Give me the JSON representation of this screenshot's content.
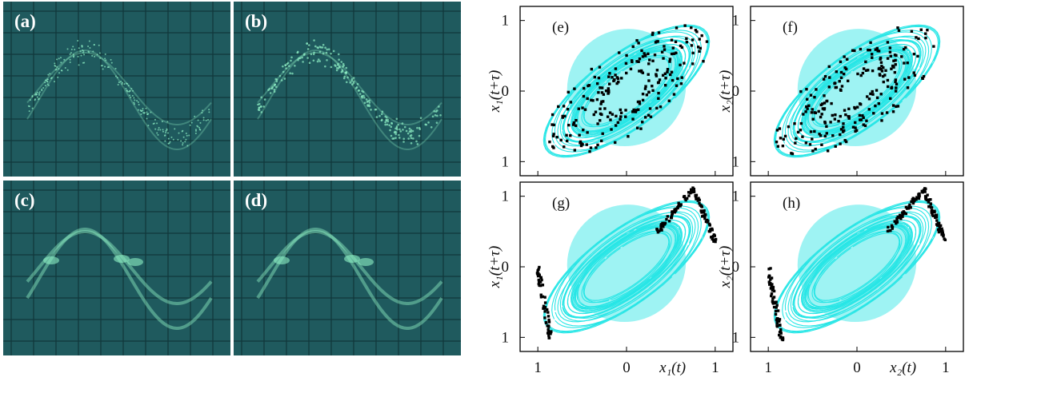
{
  "photos": [
    {
      "label": "(a)",
      "pattern": "smeared"
    },
    {
      "label": "(b)",
      "pattern": "dotted"
    },
    {
      "label": "(c)",
      "pattern": "bright-trace"
    },
    {
      "label": "(d)",
      "pattern": "bright-trace"
    }
  ],
  "colors": {
    "photo_bg": "#1f5a5e",
    "grid": "#0f3336",
    "trace": "#8ef0c4",
    "attractor": "#29e6e6",
    "points": "#000000",
    "frame": "#000000"
  },
  "axis_text": {
    "ytitle_x1": "x₁(t+τ)",
    "ytitle_x2": "x₂(t+τ)",
    "xtitle_x1": "x₁(t)",
    "xtitle_x2": "x₂(t)",
    "yticks": [
      "1",
      "0",
      "1"
    ],
    "xticks": [
      "1",
      "0",
      "1"
    ]
  },
  "chart_data": [
    {
      "label": "(e)",
      "type": "scatter",
      "overlay": "attractor",
      "xlim": [
        -1.2,
        1.2
      ],
      "ylim": [
        -1.2,
        1.2
      ],
      "ylabel": "x₁(t+τ)",
      "xlabel": "",
      "point_distribution": "scattered"
    },
    {
      "label": "(f)",
      "type": "scatter",
      "overlay": "attractor",
      "xlim": [
        -1.2,
        1.2
      ],
      "ylim": [
        -1.2,
        1.2
      ],
      "ylabel": "x₂(t+τ)",
      "xlabel": "",
      "point_distribution": "scattered"
    },
    {
      "label": "(g)",
      "type": "scatter",
      "overlay": "attractor",
      "xlim": [
        -1.2,
        1.2
      ],
      "ylim": [
        -1.2,
        1.2
      ],
      "ylabel": "x₁(t+τ)",
      "xlabel": "x₁(t)",
      "point_distribution": "clustered-on-branches"
    },
    {
      "label": "(h)",
      "type": "scatter",
      "overlay": "attractor",
      "xlim": [
        -1.2,
        1.2
      ],
      "ylim": [
        -1.2,
        1.2
      ],
      "ylabel": "x₂(t+τ)",
      "xlabel": "x₂(t)",
      "point_distribution": "clustered-on-branches"
    }
  ]
}
